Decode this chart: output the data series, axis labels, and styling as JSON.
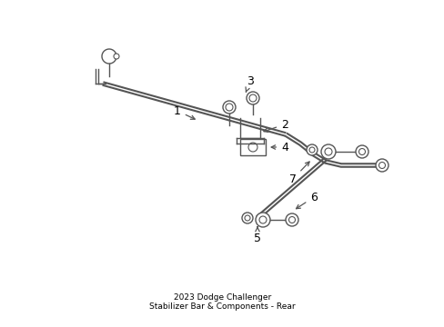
{
  "title": "2023 Dodge Challenger\nStabilizer Bar & Components - Rear",
  "background_color": "#ffffff",
  "line_color": "#555555",
  "text_color": "#000000",
  "fig_width": 4.89,
  "fig_height": 3.6,
  "dpi": 100
}
